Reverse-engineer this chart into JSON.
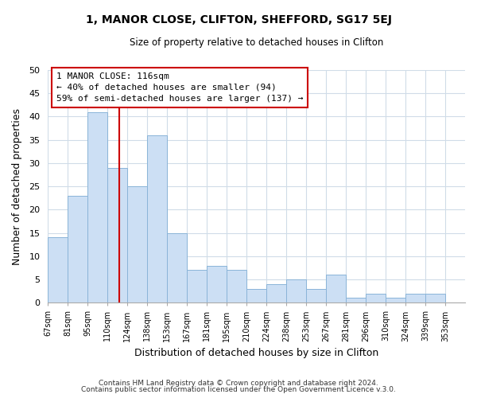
{
  "title": "1, MANOR CLOSE, CLIFTON, SHEFFORD, SG17 5EJ",
  "subtitle": "Size of property relative to detached houses in Clifton",
  "xlabel": "Distribution of detached houses by size in Clifton",
  "ylabel": "Number of detached properties",
  "bins": [
    "67sqm",
    "81sqm",
    "95sqm",
    "110sqm",
    "124sqm",
    "138sqm",
    "153sqm",
    "167sqm",
    "181sqm",
    "195sqm",
    "210sqm",
    "224sqm",
    "238sqm",
    "253sqm",
    "267sqm",
    "281sqm",
    "296sqm",
    "310sqm",
    "324sqm",
    "339sqm",
    "353sqm"
  ],
  "values": [
    14,
    23,
    41,
    29,
    25,
    36,
    15,
    7,
    8,
    7,
    3,
    4,
    5,
    3,
    6,
    1,
    2,
    1,
    2,
    2
  ],
  "bar_color": "#ccdff4",
  "bar_edge_color": "#8ab4d8",
  "vline_x_index": 3,
  "vline_color": "#cc0000",
  "annotation_title": "1 MANOR CLOSE: 116sqm",
  "annotation_line1": "← 40% of detached houses are smaller (94)",
  "annotation_line2": "59% of semi-detached houses are larger (137) →",
  "annotation_box_edge": "#cc0000",
  "footer1": "Contains HM Land Registry data © Crown copyright and database right 2024.",
  "footer2": "Contains public sector information licensed under the Open Government Licence v.3.0.",
  "ylim": [
    0,
    50
  ],
  "yticks": [
    0,
    5,
    10,
    15,
    20,
    25,
    30,
    35,
    40,
    45,
    50
  ],
  "grid_color": "#d0dce8",
  "title_fontsize": 10,
  "subtitle_fontsize": 8.5
}
